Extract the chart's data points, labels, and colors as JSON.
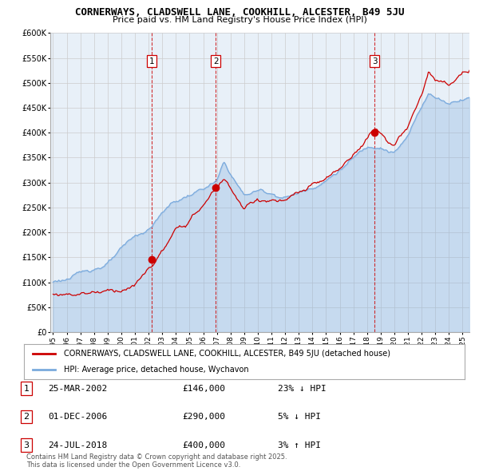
{
  "title": "CORNERWAYS, CLADSWELL LANE, COOKHILL, ALCESTER, B49 5JU",
  "subtitle": "Price paid vs. HM Land Registry's House Price Index (HPI)",
  "ylim": [
    0,
    600000
  ],
  "yticks": [
    0,
    50000,
    100000,
    150000,
    200000,
    250000,
    300000,
    350000,
    400000,
    450000,
    500000,
    550000,
    600000
  ],
  "xlim_start": 1994.8,
  "xlim_end": 2025.5,
  "sale_dates": [
    2002.23,
    2006.92,
    2018.56
  ],
  "sale_prices": [
    146000,
    290000,
    400000
  ],
  "sale_labels": [
    "1",
    "2",
    "3"
  ],
  "sale_date_strs": [
    "25-MAR-2002",
    "01-DEC-2006",
    "24-JUL-2018"
  ],
  "sale_pct": [
    "23% ↓ HPI",
    "5% ↓ HPI",
    "3% ↑ HPI"
  ],
  "red_line_color": "#cc0000",
  "blue_line_color": "#7aaadd",
  "blue_fill_color": "#ddeeff",
  "vline_color": "#cc0000",
  "grid_color": "#cccccc",
  "bg_color": "#ffffff",
  "plot_bg_color": "#e8f0f8",
  "legend_label_red": "CORNERWAYS, CLADSWELL LANE, COOKHILL, ALCESTER, B49 5JU (detached house)",
  "legend_label_blue": "HPI: Average price, detached house, Wychavon",
  "footnote": "Contains HM Land Registry data © Crown copyright and database right 2025.\nThis data is licensed under the Open Government Licence v3.0."
}
